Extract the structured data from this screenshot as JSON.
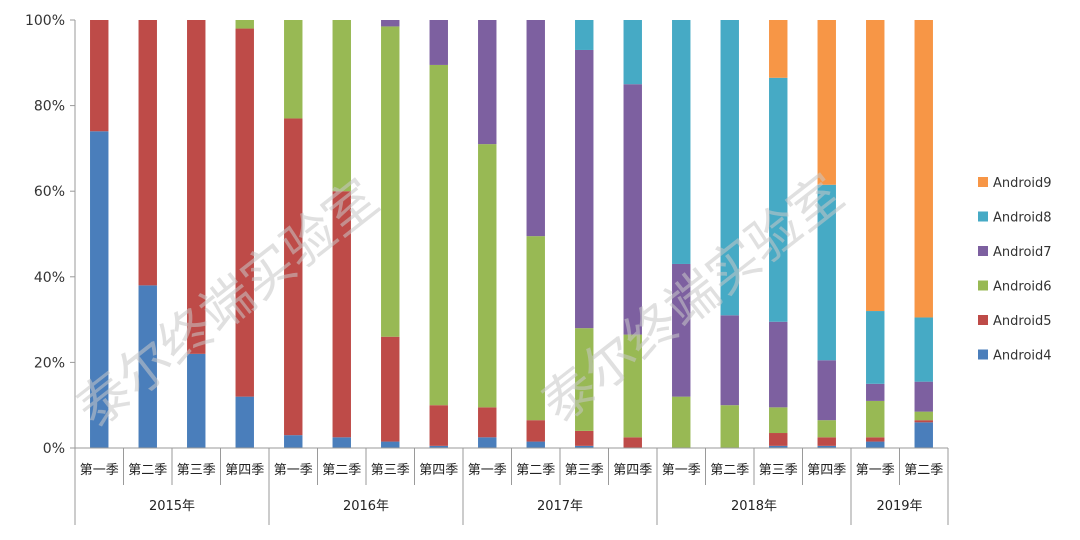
{
  "chart_data": {
    "type": "bar",
    "stacked": true,
    "normalized": true,
    "title": "",
    "xlabel": "",
    "ylabel": "",
    "ylim": [
      0,
      100
    ],
    "y_ticks": [
      "0%",
      "20%",
      "40%",
      "60%",
      "80%",
      "100%"
    ],
    "grid": false,
    "legend_position": "right",
    "categories": [
      "第一季",
      "第二季",
      "第三季",
      "第四季",
      "第一季",
      "第二季",
      "第三季",
      "第四季",
      "第一季",
      "第二季",
      "第三季",
      "第四季",
      "第一季",
      "第二季",
      "第三季",
      "第四季",
      "第一季",
      "第二季"
    ],
    "groups": [
      {
        "label": "2015年",
        "span": 4
      },
      {
        "label": "2016年",
        "span": 4
      },
      {
        "label": "2017年",
        "span": 4
      },
      {
        "label": "2018年",
        "span": 4
      },
      {
        "label": "2019年",
        "span": 2
      }
    ],
    "series": [
      {
        "name": "Android4",
        "color": "#4a7ebb",
        "values": [
          74,
          38,
          22,
          12,
          3,
          2.5,
          1.5,
          0.5,
          2.5,
          1.5,
          0.5,
          0,
          0,
          0,
          0.5,
          0.5,
          1.5,
          6
        ]
      },
      {
        "name": "Android5",
        "color": "#be4b48",
        "values": [
          26,
          62,
          78,
          86,
          74,
          57.5,
          24.5,
          9.5,
          7,
          5,
          3.5,
          2.5,
          0,
          0,
          3,
          2,
          1,
          0.5
        ]
      },
      {
        "name": "Android6",
        "color": "#98b954",
        "values": [
          0,
          0,
          0,
          2,
          23,
          40,
          72.5,
          79.5,
          61.5,
          43,
          24,
          24,
          12,
          10,
          6,
          4,
          8.5,
          2
        ]
      },
      {
        "name": "Android7",
        "color": "#7d60a0",
        "values": [
          0,
          0,
          0,
          0,
          0,
          0,
          1.5,
          10.5,
          29,
          50.5,
          65,
          58.5,
          31,
          21,
          20,
          14,
          4,
          7
        ]
      },
      {
        "name": "Android8",
        "color": "#46aac5",
        "values": [
          0,
          0,
          0,
          0,
          0,
          0,
          0,
          0,
          0,
          0,
          7,
          15,
          57,
          69,
          57,
          41,
          17,
          15
        ]
      },
      {
        "name": "Android9",
        "color": "#f79646",
        "values": [
          0,
          0,
          0,
          0,
          0,
          0,
          0,
          0,
          0,
          0,
          0,
          0,
          0,
          0,
          13.5,
          38.5,
          68,
          69.5
        ]
      }
    ],
    "legend_order": [
      "Android9",
      "Android8",
      "Android7",
      "Android6",
      "Android5",
      "Android4"
    ]
  },
  "watermark": {
    "text": "泰尔终端实验室"
  }
}
